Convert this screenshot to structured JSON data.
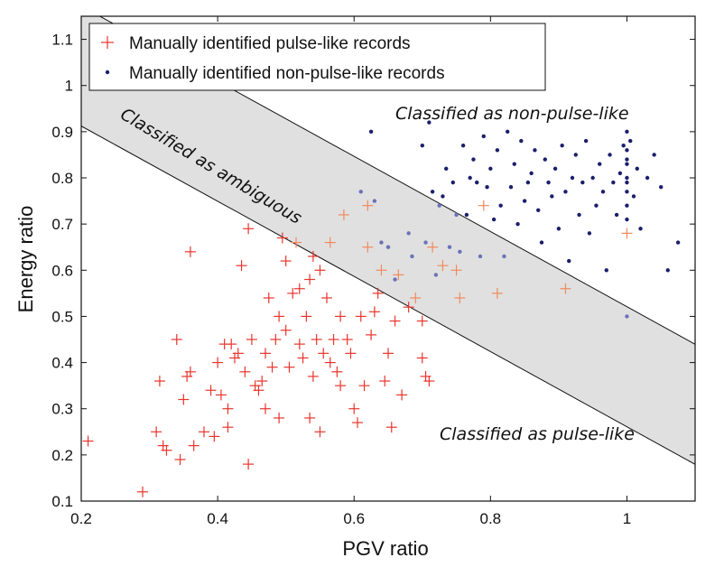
{
  "chart_data": {
    "type": "scatter",
    "title": "",
    "xlabel": "PGV ratio",
    "ylabel": "Energy ratio",
    "xlim": [
      0.2,
      1.1
    ],
    "ylim": [
      0.1,
      1.15
    ],
    "xticks": [
      0.2,
      0.4,
      0.6,
      0.8,
      1
    ],
    "xtick_labels": [
      "0.2",
      "0.4",
      "0.6",
      "0.8",
      "1"
    ],
    "yticks": [
      0.1,
      0.2,
      0.3,
      0.4,
      0.5,
      0.6,
      0.7,
      0.8,
      0.9,
      1,
      1.1
    ],
    "ytick_labels": [
      "0.1",
      "0.2",
      "0.3",
      "0.4",
      "0.5",
      "0.6",
      "0.7",
      "0.8",
      "0.9",
      "1",
      "1.1"
    ],
    "grid": false,
    "legend_position": "top-left",
    "band": {
      "label": "Classified as ambiguous",
      "upper_line": {
        "slope": -0.814,
        "intercept": 1.335
      },
      "lower_line": {
        "slope": -0.814,
        "intercept": 1.075
      },
      "fill": "#e0e0e0"
    },
    "annotations": [
      {
        "text": "Classified as ambiguous",
        "region": "inside band, upper-left"
      },
      {
        "text": "Classified as non-pulse-like",
        "region": "upper-right"
      },
      {
        "text": "Classified as pulse-like",
        "region": "lower-right"
      }
    ],
    "series": [
      {
        "name": "Manually identified pulse-like records",
        "marker": "plus",
        "color": "#e8352c",
        "points": [
          [
            0.21,
            0.23
          ],
          [
            0.29,
            0.12
          ],
          [
            0.31,
            0.25
          ],
          [
            0.315,
            0.36
          ],
          [
            0.32,
            0.22
          ],
          [
            0.325,
            0.21
          ],
          [
            0.34,
            0.45
          ],
          [
            0.345,
            0.19
          ],
          [
            0.35,
            0.32
          ],
          [
            0.355,
            0.37
          ],
          [
            0.36,
            0.38
          ],
          [
            0.36,
            0.64
          ],
          [
            0.365,
            0.22
          ],
          [
            0.38,
            0.25
          ],
          [
            0.39,
            0.34
          ],
          [
            0.395,
            0.24
          ],
          [
            0.4,
            0.4
          ],
          [
            0.405,
            0.33
          ],
          [
            0.41,
            0.44
          ],
          [
            0.415,
            0.3
          ],
          [
            0.415,
            0.26
          ],
          [
            0.42,
            0.44
          ],
          [
            0.425,
            0.41
          ],
          [
            0.43,
            0.42
          ],
          [
            0.435,
            0.61
          ],
          [
            0.44,
            0.38
          ],
          [
            0.445,
            0.69
          ],
          [
            0.445,
            0.18
          ],
          [
            0.45,
            0.45
          ],
          [
            0.455,
            0.35
          ],
          [
            0.46,
            0.34
          ],
          [
            0.465,
            0.36
          ],
          [
            0.47,
            0.3
          ],
          [
            0.47,
            0.42
          ],
          [
            0.475,
            0.54
          ],
          [
            0.48,
            0.39
          ],
          [
            0.485,
            0.45
          ],
          [
            0.49,
            0.28
          ],
          [
            0.49,
            0.5
          ],
          [
            0.495,
            0.67
          ],
          [
            0.5,
            0.62
          ],
          [
            0.5,
            0.47
          ],
          [
            0.505,
            0.39
          ],
          [
            0.51,
            0.55
          ],
          [
            0.515,
            0.66
          ],
          [
            0.52,
            0.44
          ],
          [
            0.52,
            0.56
          ],
          [
            0.525,
            0.41
          ],
          [
            0.53,
            0.5
          ],
          [
            0.535,
            0.28
          ],
          [
            0.535,
            0.58
          ],
          [
            0.54,
            0.63
          ],
          [
            0.54,
            0.37
          ],
          [
            0.545,
            0.45
          ],
          [
            0.55,
            0.6
          ],
          [
            0.55,
            0.25
          ],
          [
            0.555,
            0.42
          ],
          [
            0.56,
            0.54
          ],
          [
            0.565,
            0.4
          ],
          [
            0.565,
            0.66
          ],
          [
            0.57,
            0.45
          ],
          [
            0.575,
            0.38
          ],
          [
            0.58,
            0.35
          ],
          [
            0.58,
            0.5
          ],
          [
            0.585,
            0.72
          ],
          [
            0.59,
            0.45
          ],
          [
            0.595,
            0.42
          ],
          [
            0.6,
            0.3
          ],
          [
            0.605,
            0.27
          ],
          [
            0.61,
            0.5
          ],
          [
            0.615,
            0.35
          ],
          [
            0.62,
            0.74
          ],
          [
            0.62,
            0.65
          ],
          [
            0.625,
            0.46
          ],
          [
            0.63,
            0.51
          ],
          [
            0.635,
            0.55
          ],
          [
            0.64,
            0.6
          ],
          [
            0.645,
            0.36
          ],
          [
            0.65,
            0.42
          ],
          [
            0.655,
            0.26
          ],
          [
            0.66,
            0.49
          ],
          [
            0.665,
            0.59
          ],
          [
            0.67,
            0.33
          ],
          [
            0.68,
            0.52
          ],
          [
            0.69,
            0.54
          ],
          [
            0.7,
            0.41
          ],
          [
            0.7,
            0.49
          ],
          [
            0.705,
            0.37
          ],
          [
            0.71,
            0.36
          ],
          [
            0.715,
            0.65
          ],
          [
            0.73,
            0.61
          ],
          [
            0.75,
            0.6
          ],
          [
            0.755,
            0.54
          ],
          [
            0.79,
            0.74
          ],
          [
            0.81,
            0.55
          ],
          [
            0.91,
            0.56
          ],
          [
            1.0,
            0.68
          ]
        ]
      },
      {
        "name": "Manually identified non-pulse-like records",
        "marker": "dot",
        "color": "#1b1f6b",
        "points": [
          [
            0.61,
            0.77
          ],
          [
            0.625,
            0.9
          ],
          [
            0.63,
            0.75
          ],
          [
            0.64,
            0.66
          ],
          [
            0.65,
            0.65
          ],
          [
            0.66,
            0.58
          ],
          [
            0.68,
            0.68
          ],
          [
            0.685,
            0.63
          ],
          [
            0.7,
            0.87
          ],
          [
            0.705,
            0.66
          ],
          [
            0.71,
            0.92
          ],
          [
            0.715,
            0.77
          ],
          [
            0.72,
            0.59
          ],
          [
            0.725,
            0.74
          ],
          [
            0.73,
            0.76
          ],
          [
            0.735,
            0.82
          ],
          [
            0.74,
            0.65
          ],
          [
            0.745,
            0.79
          ],
          [
            0.75,
            0.72
          ],
          [
            0.755,
            0.64
          ],
          [
            0.76,
            0.87
          ],
          [
            0.765,
            0.72
          ],
          [
            0.77,
            0.8
          ],
          [
            0.775,
            0.84
          ],
          [
            0.78,
            0.79
          ],
          [
            0.785,
            0.63
          ],
          [
            0.79,
            0.89
          ],
          [
            0.795,
            0.78
          ],
          [
            0.8,
            0.82
          ],
          [
            0.805,
            0.71
          ],
          [
            0.81,
            0.86
          ],
          [
            0.815,
            0.74
          ],
          [
            0.82,
            0.63
          ],
          [
            0.825,
            0.9
          ],
          [
            0.83,
            0.78
          ],
          [
            0.835,
            0.83
          ],
          [
            0.84,
            0.7
          ],
          [
            0.845,
            0.88
          ],
          [
            0.85,
            0.75
          ],
          [
            0.855,
            0.79
          ],
          [
            0.86,
            0.81
          ],
          [
            0.865,
            0.86
          ],
          [
            0.87,
            0.73
          ],
          [
            0.875,
            0.66
          ],
          [
            0.88,
            0.84
          ],
          [
            0.885,
            0.79
          ],
          [
            0.89,
            0.76
          ],
          [
            0.895,
            0.82
          ],
          [
            0.9,
            0.69
          ],
          [
            0.905,
            0.87
          ],
          [
            0.91,
            0.77
          ],
          [
            0.915,
            0.62
          ],
          [
            0.92,
            0.8
          ],
          [
            0.925,
            0.85
          ],
          [
            0.93,
            0.72
          ],
          [
            0.935,
            0.79
          ],
          [
            0.94,
            0.88
          ],
          [
            0.945,
            0.68
          ],
          [
            0.95,
            0.8
          ],
          [
            0.955,
            0.74
          ],
          [
            0.96,
            0.83
          ],
          [
            0.965,
            0.77
          ],
          [
            0.97,
            0.6
          ],
          [
            0.975,
            0.85
          ],
          [
            0.98,
            0.79
          ],
          [
            0.985,
            0.72
          ],
          [
            0.99,
            0.81
          ],
          [
            0.995,
            0.87
          ],
          [
            1.0,
            0.9
          ],
          [
            1.0,
            0.86
          ],
          [
            1.0,
            0.83
          ],
          [
            1.0,
            0.8
          ],
          [
            1.0,
            0.77
          ],
          [
            1.0,
            0.74
          ],
          [
            1.0,
            0.71
          ],
          [
            1.0,
            0.84
          ],
          [
            1.0,
            0.79
          ],
          [
            1.0,
            0.5
          ],
          [
            1.005,
            0.88
          ],
          [
            1.01,
            0.76
          ],
          [
            1.015,
            0.82
          ],
          [
            1.02,
            0.69
          ],
          [
            1.03,
            0.8
          ],
          [
            1.04,
            0.85
          ],
          [
            1.05,
            0.78
          ],
          [
            1.06,
            0.6
          ],
          [
            1.075,
            0.66
          ]
        ]
      }
    ]
  },
  "legend": {
    "items": [
      {
        "label": "Manually identified pulse-like records",
        "color": "#e8352c"
      },
      {
        "label": "Manually identified non-pulse-like records",
        "color": "#1b1f6b"
      }
    ]
  }
}
